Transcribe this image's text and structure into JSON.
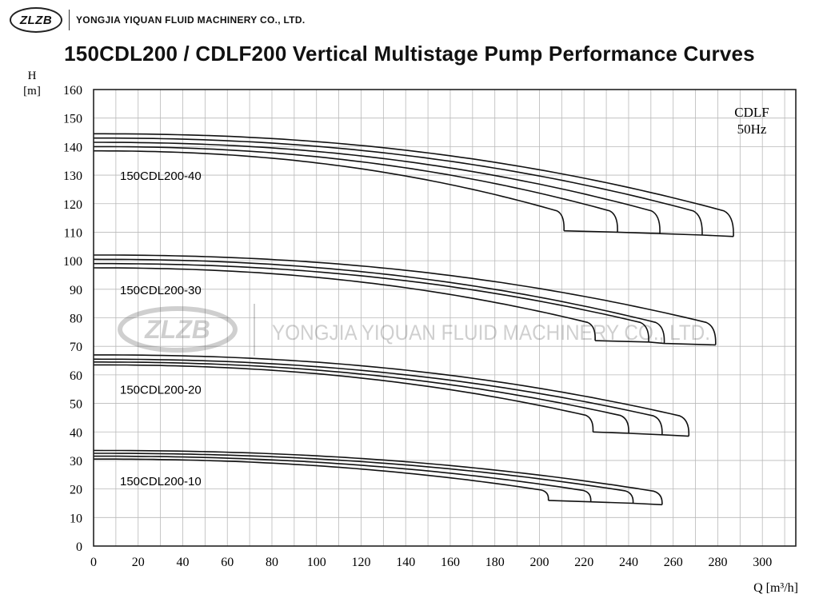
{
  "header": {
    "logo_text": "ZLZB",
    "company": "YONGJIA YIQUAN FLUID MACHINERY CO., LTD."
  },
  "watermark": {
    "logo_text": "ZLZB",
    "text": "YONGJIA YIQUAN FLUID MACHINERY CO., LTD."
  },
  "chart_data": {
    "type": "line",
    "title": "150CDL200 / CDLF200 Vertical Multistage Pump Performance Curves",
    "ylabel_top": "H",
    "ylabel_unit": "[m]",
    "xlabel": "Q [m³/h]",
    "xlim": [
      0,
      315
    ],
    "ylim": [
      0,
      160
    ],
    "xticks": [
      0,
      20,
      40,
      60,
      80,
      100,
      120,
      140,
      160,
      180,
      200,
      220,
      240,
      260,
      280,
      300
    ],
    "yticks": [
      0,
      10,
      20,
      30,
      40,
      50,
      60,
      70,
      80,
      90,
      100,
      110,
      120,
      130,
      140,
      150,
      160
    ],
    "grid": true,
    "annotation": [
      "CDLF",
      "50Hz"
    ],
    "groups": [
      {
        "label": "150CDL200-40",
        "curves": [
          {
            "h0": 144.5,
            "qmax": 287,
            "hmin": 108.5
          },
          {
            "h0": 143.0,
            "qmax": 273,
            "hmin": 109.0
          },
          {
            "h0": 141.5,
            "qmax": 254,
            "hmin": 109.5
          },
          {
            "h0": 140.0,
            "qmax": 235,
            "hmin": 110.0
          },
          {
            "h0": 138.5,
            "qmax": 211,
            "hmin": 110.5
          }
        ]
      },
      {
        "label": "150CDL200-30",
        "curves": [
          {
            "h0": 102.0,
            "qmax": 279,
            "hmin": 70.5
          },
          {
            "h0": 100.5,
            "qmax": 256,
            "hmin": 71.0
          },
          {
            "h0": 99.0,
            "qmax": 249,
            "hmin": 71.5
          },
          {
            "h0": 97.5,
            "qmax": 225,
            "hmin": 72.0
          }
        ]
      },
      {
        "label": "150CDL200-20",
        "curves": [
          {
            "h0": 67.0,
            "qmax": 267,
            "hmin": 38.5
          },
          {
            "h0": 65.5,
            "qmax": 255,
            "hmin": 39.0
          },
          {
            "h0": 64.5,
            "qmax": 240,
            "hmin": 39.5
          },
          {
            "h0": 63.5,
            "qmax": 224,
            "hmin": 40.0
          }
        ]
      },
      {
        "label": "150CDL200-10",
        "curves": [
          {
            "h0": 33.5,
            "qmax": 255,
            "hmin": 14.5
          },
          {
            "h0": 32.5,
            "qmax": 242,
            "hmin": 15.0
          },
          {
            "h0": 31.5,
            "qmax": 223,
            "hmin": 15.5
          },
          {
            "h0": 30.5,
            "qmax": 204,
            "hmin": 16.0
          }
        ]
      }
    ],
    "group_label_y": [
      130,
      90,
      55,
      23
    ]
  }
}
